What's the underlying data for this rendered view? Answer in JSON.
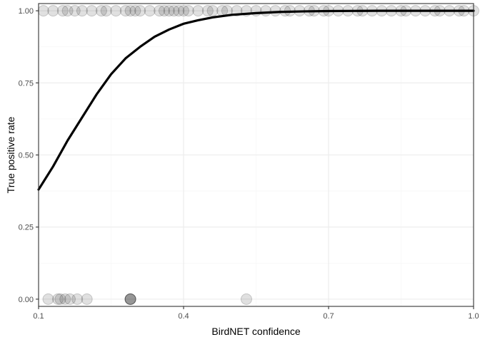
{
  "chart_data": {
    "type": "scatter",
    "xlabel": "BirdNET confidence",
    "ylabel": "True positive rate",
    "xlim": [
      0.1,
      1.0
    ],
    "ylim": [
      -0.025,
      1.025
    ],
    "x_ticks": [
      0.1,
      0.4,
      0.7,
      1.0
    ],
    "x_tick_labels": [
      "0.1",
      "0.4",
      "0.7",
      "1.0"
    ],
    "y_ticks": [
      0.0,
      0.25,
      0.5,
      0.75,
      1.0
    ],
    "y_tick_labels": [
      "0.00",
      "0.25",
      "0.50",
      "0.75",
      "1.00"
    ],
    "grid": true,
    "legend": "none",
    "colors": {
      "point": "#000000",
      "point_opacity": 0.12,
      "curve": "#000000",
      "grid_major": "#ebebeb",
      "grid_minor": "#f5f5f5",
      "panel_border": "#333333"
    },
    "series": [
      {
        "kind": "points",
        "x": [
          0.11,
          0.13,
          0.15,
          0.16,
          0.175,
          0.19,
          0.21,
          0.23,
          0.24,
          0.26,
          0.28,
          0.29,
          0.3,
          0.31,
          0.33,
          0.35,
          0.36,
          0.37,
          0.38,
          0.39,
          0.4,
          0.41,
          0.43,
          0.45,
          0.46,
          0.48,
          0.49,
          0.51,
          0.53,
          0.55,
          0.57,
          0.59,
          0.61,
          0.62,
          0.64,
          0.66,
          0.67,
          0.69,
          0.7,
          0.72,
          0.74,
          0.76,
          0.77,
          0.79,
          0.81,
          0.83,
          0.85,
          0.86,
          0.88,
          0.9,
          0.92,
          0.93,
          0.95,
          0.97,
          0.98,
          1.0
        ],
        "y": [
          1,
          1,
          1,
          1,
          1,
          1,
          1,
          1,
          1,
          1,
          1,
          1,
          1,
          1,
          1,
          1,
          1,
          1,
          1,
          1,
          1,
          1,
          1,
          1,
          1,
          1,
          1,
          1,
          1,
          1,
          1,
          1,
          1,
          1,
          1,
          1,
          1,
          1,
          1,
          1,
          1,
          1,
          1,
          1,
          1,
          1,
          1,
          1,
          1,
          1,
          1,
          1,
          1,
          1,
          1,
          1
        ]
      },
      {
        "kind": "points",
        "x": [
          0.12,
          0.14,
          0.145,
          0.155,
          0.165,
          0.18,
          0.2,
          0.29,
          0.29,
          0.29,
          0.29,
          0.53
        ],
        "y": [
          0,
          0,
          0,
          0,
          0,
          0,
          0,
          0,
          0,
          0,
          0,
          0
        ]
      },
      {
        "kind": "line",
        "x": [
          0.1,
          0.13,
          0.16,
          0.19,
          0.22,
          0.25,
          0.28,
          0.31,
          0.34,
          0.37,
          0.4,
          0.43,
          0.46,
          0.5,
          0.55,
          0.6,
          0.65,
          0.7,
          0.75,
          0.8,
          0.85,
          0.9,
          0.95,
          1.0
        ],
        "y": [
          0.38,
          0.46,
          0.55,
          0.63,
          0.71,
          0.78,
          0.835,
          0.875,
          0.91,
          0.935,
          0.955,
          0.967,
          0.977,
          0.986,
          0.992,
          0.996,
          0.998,
          0.999,
          0.9995,
          1.0,
          1.0,
          1.0,
          1.0,
          1.0
        ]
      }
    ]
  }
}
